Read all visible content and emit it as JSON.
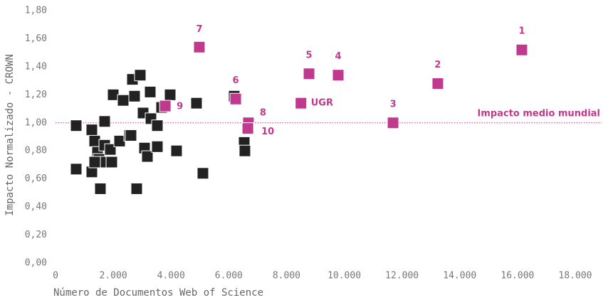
{
  "chart_data": {
    "type": "scatter",
    "xlabel": "Número de Documentos Web of Science",
    "ylabel": "Impacto Normalizado - CROWN",
    "xlim": [
      0,
      18000
    ],
    "ylim": [
      0,
      1.8
    ],
    "xticks": [
      0,
      {
        "value": 2000,
        "label": "2.000"
      },
      {
        "value": 4000,
        "label": "4.000"
      },
      {
        "value": 6000,
        "label": "6.000"
      },
      {
        "value": 8000,
        "label": "8.000"
      },
      {
        "value": 10000,
        "label": "10.000"
      },
      {
        "value": 12000,
        "label": "12.000"
      },
      {
        "value": 14000,
        "label": "14.000"
      },
      {
        "value": 16000,
        "label": "16.000"
      },
      {
        "value": 18000,
        "label": "18.000"
      }
    ],
    "yticks": [
      {
        "value": 0,
        "label": "0,00"
      },
      {
        "value": 0.2,
        "label": "0,20"
      },
      {
        "value": 0.4,
        "label": "0,40"
      },
      {
        "value": 0.6,
        "label": "0,60"
      },
      {
        "value": 0.8,
        "label": "0,80"
      },
      {
        "value": 1.0,
        "label": "1,00"
      },
      {
        "value": 1.2,
        "label": "1,20"
      },
      {
        "value": 1.4,
        "label": "1,40"
      },
      {
        "value": 1.6,
        "label": "1,60"
      },
      {
        "value": 1.8,
        "label": "1,80"
      }
    ],
    "reference_line": {
      "value": 1.0,
      "label": "Impacto medio mundial",
      "color": "#c0398f"
    },
    "series": [
      {
        "color": "#222222",
        "x": [
          715,
          715,
          1257,
          1257,
          1356,
          1455,
          1504,
          1553,
          1701,
          1701,
          1750,
          1898,
          1948,
          1997,
          2219,
          2342,
          2564,
          2663,
          2737,
          2934,
          3033,
          3082,
          3181,
          3279,
          3304,
          3526,
          3526,
          2811,
          3970,
          4191,
          4882,
          5104,
          6188,
          6534,
          6558,
          1356,
          3674,
          2613
        ],
        "values": [
          0.98,
          0.67,
          0.95,
          0.65,
          0.87,
          0.79,
          0.74,
          0.53,
          1.01,
          0.84,
          0.72,
          0.81,
          0.72,
          1.2,
          0.87,
          1.16,
          0.91,
          1.31,
          1.19,
          1.34,
          1.07,
          0.82,
          0.76,
          1.22,
          1.03,
          0.83,
          0.98,
          0.53,
          1.2,
          0.8,
          1.14,
          0.64,
          1.19,
          0.86,
          0.8,
          0.72,
          1.11,
          0.91
        ]
      },
      {
        "color": "#c0398f",
        "x": [
          16150,
          13240,
          11690,
          9790,
          8780,
          6240,
          4980,
          6680,
          3800,
          6660,
          8500
        ],
        "values": [
          1.52,
          1.28,
          1.0,
          1.34,
          1.35,
          1.17,
          1.54,
          1.0,
          1.12,
          0.96,
          1.14
        ],
        "labels": [
          "1",
          "2",
          "3",
          "4",
          "5",
          "6",
          "7",
          "8",
          "9",
          "10",
          "UGR"
        ]
      }
    ]
  }
}
